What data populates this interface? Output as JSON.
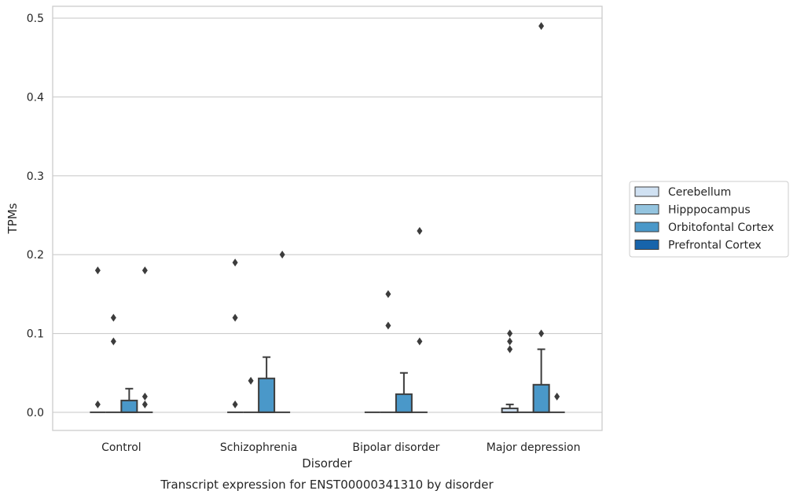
{
  "chart_data": {
    "type": "box",
    "title": "",
    "caption": "Transcript expression for ENST00000341310 by disorder",
    "xlabel": "Disorder",
    "ylabel": "TPMs",
    "ylim": [
      -0.023,
      0.515
    ],
    "yticks": [
      0.0,
      0.1,
      0.2,
      0.3,
      0.4,
      0.5
    ],
    "ytick_labels": [
      "0.0",
      "0.1",
      "0.2",
      "0.3",
      "0.4",
      "0.5"
    ],
    "grid": true,
    "legend_position": "right",
    "categories": [
      "Control",
      "Schizophrenia",
      "Bipolar disorder",
      "Major depression"
    ],
    "series": [
      {
        "name": "Cerebellum",
        "color": "#d0e1f2",
        "boxes": [
          {
            "q1": 0,
            "median": 0,
            "q3": 0,
            "whisker_low": 0,
            "whisker_high": 0,
            "outliers": [
              0.01,
              0.18
            ]
          },
          {
            "q1": 0,
            "median": 0,
            "q3": 0,
            "whisker_low": 0,
            "whisker_high": 0,
            "outliers": [
              0.01,
              0.12,
              0.19
            ]
          },
          {
            "q1": 0,
            "median": 0,
            "q3": 0,
            "whisker_low": 0,
            "whisker_high": 0,
            "outliers": []
          },
          {
            "q1": 0,
            "median": 0,
            "q3": 0.005,
            "whisker_low": 0,
            "whisker_high": 0.01,
            "outliers": [
              0.08,
              0.09,
              0.1
            ]
          }
        ]
      },
      {
        "name": "Hipppocampus",
        "color": "#94c4df",
        "boxes": [
          {
            "q1": 0,
            "median": 0,
            "q3": 0,
            "whisker_low": 0,
            "whisker_high": 0,
            "outliers": [
              0.09,
              0.12
            ]
          },
          {
            "q1": 0,
            "median": 0,
            "q3": 0,
            "whisker_low": 0,
            "whisker_high": 0,
            "outliers": [
              0.04
            ]
          },
          {
            "q1": 0,
            "median": 0,
            "q3": 0,
            "whisker_low": 0,
            "whisker_high": 0,
            "outliers": [
              0.11,
              0.15
            ]
          },
          {
            "q1": 0,
            "median": 0,
            "q3": 0,
            "whisker_low": 0,
            "whisker_high": 0,
            "outliers": []
          }
        ]
      },
      {
        "name": "Orbitofontal Cortex",
        "color": "#4a98c9",
        "boxes": [
          {
            "q1": 0,
            "median": 0,
            "q3": 0.015,
            "whisker_low": 0,
            "whisker_high": 0.03,
            "outliers": []
          },
          {
            "q1": 0,
            "median": 0,
            "q3": 0.043,
            "whisker_low": 0,
            "whisker_high": 0.07,
            "outliers": []
          },
          {
            "q1": 0,
            "median": 0,
            "q3": 0.023,
            "whisker_low": 0,
            "whisker_high": 0.05,
            "outliers": []
          },
          {
            "q1": 0,
            "median": 0,
            "q3": 0.035,
            "whisker_low": 0,
            "whisker_high": 0.08,
            "outliers": [
              0.1,
              0.49
            ]
          }
        ]
      },
      {
        "name": "Prefrontal Cortex",
        "color": "#1764ab",
        "boxes": [
          {
            "q1": 0,
            "median": 0,
            "q3": 0,
            "whisker_low": 0,
            "whisker_high": 0,
            "outliers": [
              0.01,
              0.02,
              0.18
            ]
          },
          {
            "q1": 0,
            "median": 0,
            "q3": 0,
            "whisker_low": 0,
            "whisker_high": 0,
            "outliers": [
              0.2
            ]
          },
          {
            "q1": 0,
            "median": 0,
            "q3": 0,
            "whisker_low": 0,
            "whisker_high": 0,
            "outliers": [
              0.09,
              0.23
            ]
          },
          {
            "q1": 0,
            "median": 0,
            "q3": 0,
            "whisker_low": 0,
            "whisker_high": 0,
            "outliers": [
              0.02
            ]
          }
        ]
      }
    ]
  }
}
